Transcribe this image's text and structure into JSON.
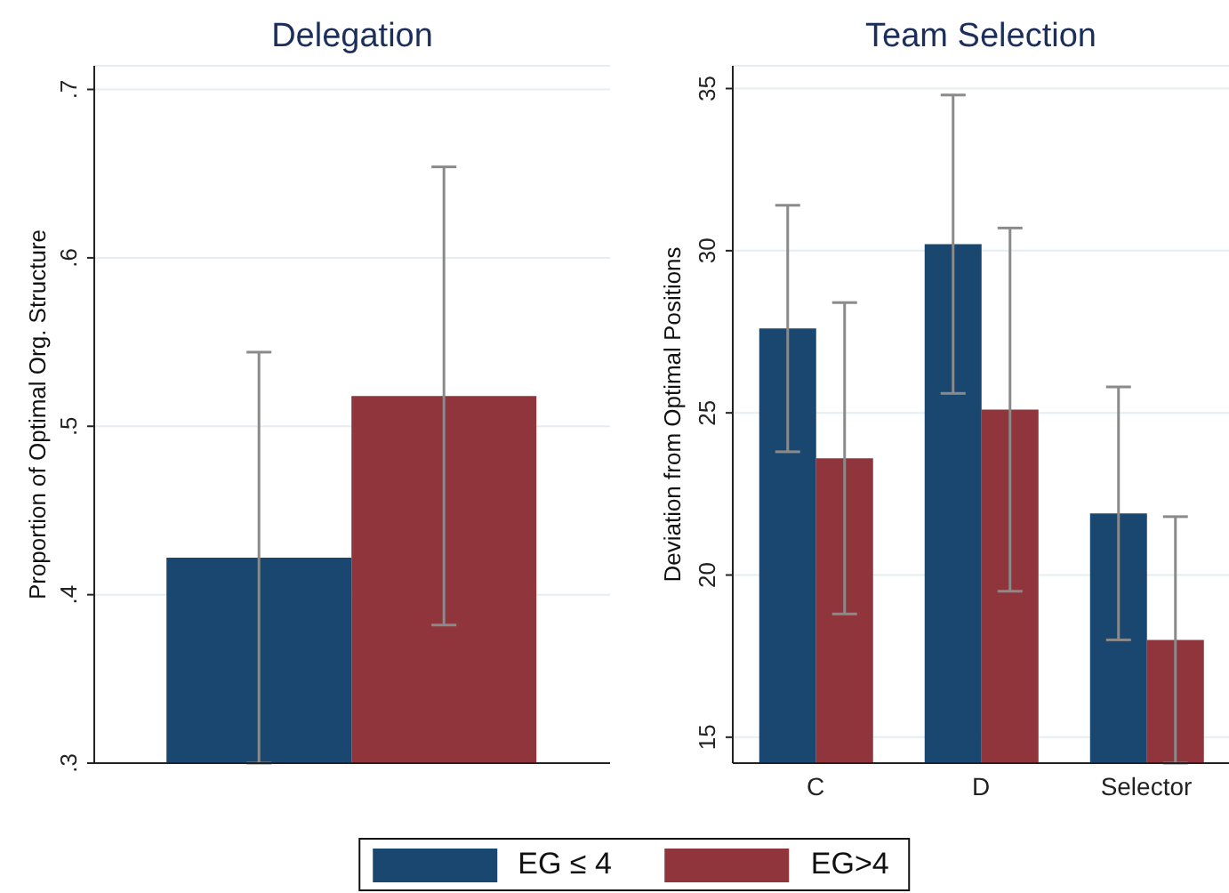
{
  "chart_data": [
    {
      "type": "bar",
      "title": "Delegation",
      "ylabel": "Proportion of Optimal Org. Structure",
      "categories": [
        null
      ],
      "series": [
        {
          "name": "EG ≤ 4",
          "color": "#1a476f",
          "values": [
            0.422
          ],
          "errors": [
            0.122
          ]
        },
        {
          "name": "EG>4",
          "color": "#90353b",
          "values": [
            0.518
          ],
          "errors": [
            0.136
          ]
        }
      ],
      "ylim": [
        0.3,
        0.714
      ],
      "yticks": [
        {
          "value": 0.3,
          "label": ".3"
        },
        {
          "value": 0.4,
          "label": ".4"
        },
        {
          "value": 0.5,
          "label": ".5"
        },
        {
          "value": 0.6,
          "label": ".6"
        },
        {
          "value": 0.7,
          "label": ".7"
        }
      ],
      "grid": "y",
      "legend": "bottom",
      "tick_labels": "y"
    },
    {
      "type": "bar",
      "title": "Team Selection",
      "ylabel": "Deviation from Optimal Positions",
      "categories": [
        "C",
        "D",
        "Selector"
      ],
      "series": [
        {
          "name": "EG ≤ 4",
          "color": "#1a476f",
          "values": [
            27.6,
            30.2,
            21.9
          ],
          "errors": [
            3.8,
            4.6,
            3.9
          ]
        },
        {
          "name": "EG>4",
          "color": "#90353b",
          "values": [
            23.6,
            25.1,
            18.0
          ],
          "errors": [
            4.8,
            5.6,
            3.8
          ]
        }
      ],
      "ylim": [
        14.2,
        35.7
      ],
      "yticks": [
        15,
        20,
        25,
        30,
        35
      ],
      "grid": "y",
      "legend": "bottom"
    }
  ]
}
